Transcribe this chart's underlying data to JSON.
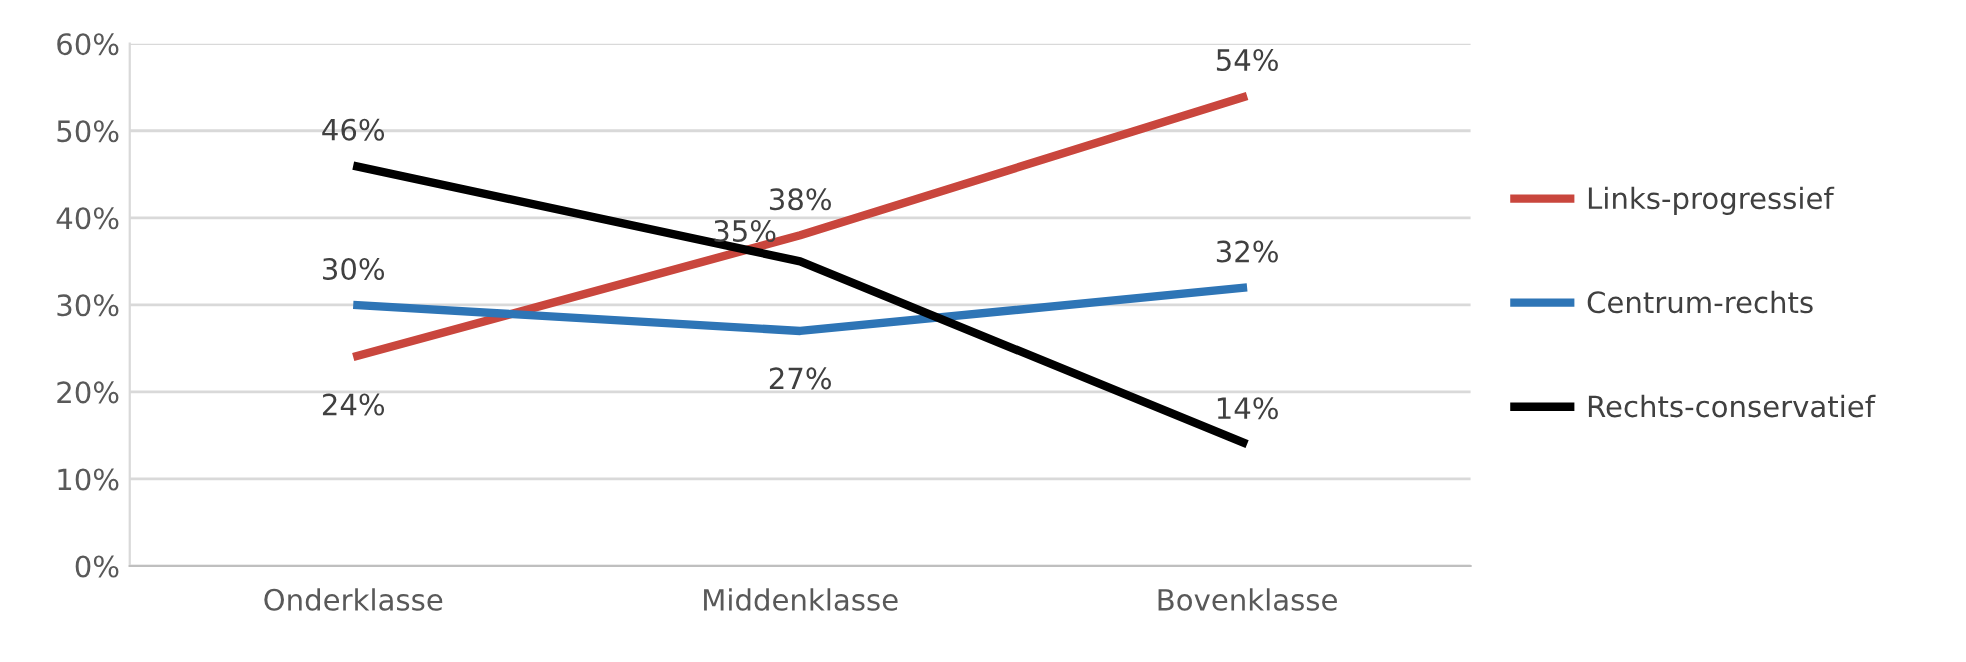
{
  "chart_data": {
    "type": "line",
    "categories": [
      "Onderklasse",
      "Middenklasse",
      "Bovenklasse"
    ],
    "series": [
      {
        "name": "Links-progressief",
        "color": "#c9463d",
        "values": [
          24,
          38,
          54
        ],
        "value_labels": [
          "24%",
          "38%",
          "54%"
        ]
      },
      {
        "name": "Centrum-rechts",
        "color": "#2e75b6",
        "values": [
          30,
          27,
          32
        ],
        "value_labels": [
          "30%",
          "27%",
          "32%"
        ]
      },
      {
        "name": "Rechts-conservatief",
        "color": "#000000",
        "values": [
          46,
          35,
          14
        ],
        "value_labels": [
          "46%",
          "35%",
          "14%"
        ]
      }
    ],
    "ylim": [
      0,
      60
    ],
    "yticks": [
      {
        "value": 0,
        "label": "0%"
      },
      {
        "value": 10,
        "label": "10%"
      },
      {
        "value": 20,
        "label": "20%"
      },
      {
        "value": 30,
        "label": "30%"
      },
      {
        "value": 40,
        "label": "40%"
      },
      {
        "value": 50,
        "label": "50%"
      },
      {
        "value": 60,
        "label": "60%"
      }
    ],
    "grid": "y",
    "legend": "right",
    "marker": "none",
    "line_style": "solid"
  }
}
